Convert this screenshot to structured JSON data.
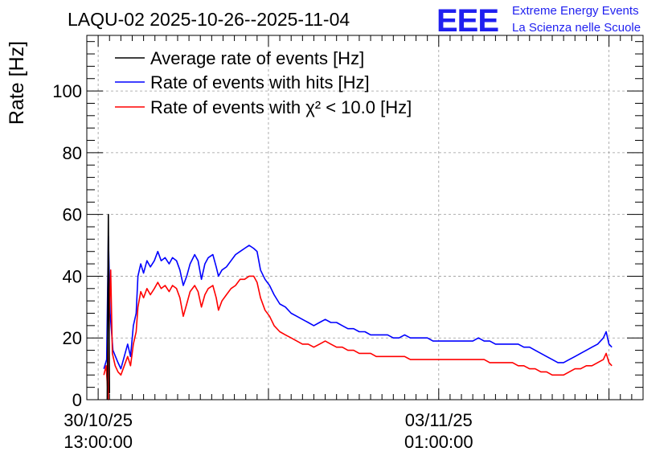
{
  "logo": {
    "mark": "EEE",
    "line1": "Extreme Energy Events",
    "line2": "La Scienza nelle Scuole",
    "color": "#1f1ff0"
  },
  "chart_data": {
    "type": "line",
    "title": "LAQU-02 2025-10-26--2025-11-04",
    "ylabel": "Rate [Hz]",
    "xlabel": "",
    "ylim": [
      0,
      118
    ],
    "y_ticks": [
      0,
      20,
      40,
      60,
      80,
      100
    ],
    "x_unit": "hours since 30/10/25 13:00:00",
    "xlim": [
      -2,
      96
    ],
    "x_tick_labels": [
      {
        "x": 0,
        "line1": "30/10/25",
        "line2": "13:00:00"
      },
      {
        "x": 60,
        "line1": "03/11/25",
        "line2": "01:00:00"
      }
    ],
    "grid": true,
    "legend_position": "top-left",
    "series": [
      {
        "name": "Average rate of events [Hz]",
        "color": "#000000",
        "points": [
          [
            1.6,
            0
          ],
          [
            1.8,
            60
          ],
          [
            2.0,
            2
          ]
        ]
      },
      {
        "name": "Rate of events with hits [Hz]",
        "color": "#0000ff",
        "points": [
          [
            1,
            10
          ],
          [
            1.5,
            13
          ],
          [
            1.8,
            53
          ],
          [
            2.1,
            28
          ],
          [
            2.6,
            16
          ],
          [
            3.5,
            12
          ],
          [
            4,
            10
          ],
          [
            4.6,
            14
          ],
          [
            5.2,
            18
          ],
          [
            5.7,
            14
          ],
          [
            6.2,
            24
          ],
          [
            6.7,
            28
          ],
          [
            7,
            40
          ],
          [
            7.5,
            44
          ],
          [
            8,
            41
          ],
          [
            8.6,
            45
          ],
          [
            9.2,
            43
          ],
          [
            9.9,
            45
          ],
          [
            10.5,
            48
          ],
          [
            11.1,
            45
          ],
          [
            11.8,
            46
          ],
          [
            12.5,
            44
          ],
          [
            13.1,
            46
          ],
          [
            13.8,
            45
          ],
          [
            14.4,
            42
          ],
          [
            15,
            37
          ],
          [
            15.6,
            40
          ],
          [
            16.2,
            44
          ],
          [
            17,
            47
          ],
          [
            17.6,
            45
          ],
          [
            18.2,
            39
          ],
          [
            18.8,
            44
          ],
          [
            19.4,
            46
          ],
          [
            20.2,
            47
          ],
          [
            20.8,
            43
          ],
          [
            21.2,
            40
          ],
          [
            21.8,
            42
          ],
          [
            22.6,
            43
          ],
          [
            23.4,
            45
          ],
          [
            24.2,
            47
          ],
          [
            25,
            48
          ],
          [
            25.8,
            49
          ],
          [
            26.6,
            50
          ],
          [
            27.4,
            49
          ],
          [
            28,
            48
          ],
          [
            28.6,
            42
          ],
          [
            29.4,
            39
          ],
          [
            30.2,
            37
          ],
          [
            31,
            34
          ],
          [
            32,
            31
          ],
          [
            33,
            30
          ],
          [
            34,
            28
          ],
          [
            35,
            27
          ],
          [
            36,
            26
          ],
          [
            37,
            25
          ],
          [
            38,
            24
          ],
          [
            39,
            25
          ],
          [
            40,
            26
          ],
          [
            41,
            25
          ],
          [
            42,
            25
          ],
          [
            43,
            24
          ],
          [
            44,
            23
          ],
          [
            45,
            23
          ],
          [
            46,
            22
          ],
          [
            47,
            22
          ],
          [
            48,
            21
          ],
          [
            49,
            21
          ],
          [
            50,
            21
          ],
          [
            51,
            21
          ],
          [
            52,
            20
          ],
          [
            53,
            20
          ],
          [
            54,
            21
          ],
          [
            55,
            20
          ],
          [
            56,
            20
          ],
          [
            57,
            20
          ],
          [
            58,
            20
          ],
          [
            59,
            19
          ],
          [
            60,
            19
          ],
          [
            61,
            19
          ],
          [
            62,
            19
          ],
          [
            63,
            19
          ],
          [
            64,
            19
          ],
          [
            65,
            19
          ],
          [
            66,
            19
          ],
          [
            67,
            20
          ],
          [
            68,
            19
          ],
          [
            69,
            19
          ],
          [
            70,
            18
          ],
          [
            71,
            18
          ],
          [
            72,
            18
          ],
          [
            73,
            18
          ],
          [
            74,
            18
          ],
          [
            75,
            17
          ],
          [
            76,
            17
          ],
          [
            77,
            16
          ],
          [
            78,
            15
          ],
          [
            79,
            14
          ],
          [
            80,
            13
          ],
          [
            81,
            12
          ],
          [
            82,
            12
          ],
          [
            83,
            13
          ],
          [
            84,
            14
          ],
          [
            85,
            15
          ],
          [
            86,
            16
          ],
          [
            87,
            17
          ],
          [
            88,
            18
          ],
          [
            89,
            20
          ],
          [
            89.5,
            22
          ],
          [
            90,
            18
          ],
          [
            90.5,
            17
          ]
        ]
      },
      {
        "name": "Rate of events with χ² < 10.0 [Hz]",
        "color": "#ff0000",
        "points": [
          [
            1,
            8
          ],
          [
            1.4,
            11
          ],
          [
            1.8,
            0
          ],
          [
            2.0,
            30
          ],
          [
            2.2,
            42
          ],
          [
            2.5,
            15
          ],
          [
            3,
            11
          ],
          [
            3.5,
            9
          ],
          [
            4,
            8
          ],
          [
            4.6,
            11
          ],
          [
            5.2,
            14
          ],
          [
            5.7,
            11
          ],
          [
            6.2,
            18
          ],
          [
            6.7,
            22
          ],
          [
            7,
            30
          ],
          [
            7.5,
            35
          ],
          [
            8,
            33
          ],
          [
            8.6,
            36
          ],
          [
            9.2,
            34
          ],
          [
            9.9,
            36
          ],
          [
            10.5,
            38
          ],
          [
            11.1,
            36
          ],
          [
            11.8,
            37
          ],
          [
            12.5,
            35
          ],
          [
            13.1,
            37
          ],
          [
            13.8,
            36
          ],
          [
            14.4,
            33
          ],
          [
            15,
            27
          ],
          [
            15.6,
            31
          ],
          [
            16.2,
            35
          ],
          [
            17,
            37
          ],
          [
            17.6,
            35
          ],
          [
            18.2,
            30
          ],
          [
            18.8,
            34
          ],
          [
            19.4,
            36
          ],
          [
            20.2,
            37
          ],
          [
            20.8,
            33
          ],
          [
            21.2,
            29
          ],
          [
            21.8,
            32
          ],
          [
            22.6,
            34
          ],
          [
            23.4,
            36
          ],
          [
            24.2,
            37
          ],
          [
            25,
            39
          ],
          [
            25.8,
            39
          ],
          [
            26.6,
            40
          ],
          [
            27.4,
            40
          ],
          [
            28,
            38
          ],
          [
            28.6,
            33
          ],
          [
            29.4,
            29
          ],
          [
            30.2,
            27
          ],
          [
            31,
            24
          ],
          [
            32,
            22
          ],
          [
            33,
            21
          ],
          [
            34,
            20
          ],
          [
            35,
            19
          ],
          [
            36,
            18
          ],
          [
            37,
            18
          ],
          [
            38,
            17
          ],
          [
            39,
            18
          ],
          [
            40,
            19
          ],
          [
            41,
            18
          ],
          [
            42,
            17
          ],
          [
            43,
            17
          ],
          [
            44,
            16
          ],
          [
            45,
            16
          ],
          [
            46,
            15
          ],
          [
            47,
            15
          ],
          [
            48,
            15
          ],
          [
            49,
            14
          ],
          [
            50,
            14
          ],
          [
            51,
            14
          ],
          [
            52,
            14
          ],
          [
            53,
            14
          ],
          [
            54,
            14
          ],
          [
            55,
            13
          ],
          [
            56,
            13
          ],
          [
            57,
            13
          ],
          [
            58,
            13
          ],
          [
            59,
            13
          ],
          [
            60,
            13
          ],
          [
            61,
            13
          ],
          [
            62,
            13
          ],
          [
            63,
            13
          ],
          [
            64,
            13
          ],
          [
            65,
            13
          ],
          [
            66,
            13
          ],
          [
            67,
            13
          ],
          [
            68,
            13
          ],
          [
            69,
            12
          ],
          [
            70,
            12
          ],
          [
            71,
            12
          ],
          [
            72,
            12
          ],
          [
            73,
            12
          ],
          [
            74,
            11
          ],
          [
            75,
            11
          ],
          [
            76,
            10
          ],
          [
            77,
            10
          ],
          [
            78,
            9
          ],
          [
            79,
            9
          ],
          [
            80,
            8
          ],
          [
            81,
            8
          ],
          [
            82,
            8
          ],
          [
            83,
            9
          ],
          [
            84,
            10
          ],
          [
            85,
            10
          ],
          [
            86,
            11
          ],
          [
            87,
            11
          ],
          [
            88,
            12
          ],
          [
            89,
            13
          ],
          [
            89.5,
            15
          ],
          [
            90,
            12
          ],
          [
            90.5,
            11
          ]
        ]
      }
    ]
  }
}
